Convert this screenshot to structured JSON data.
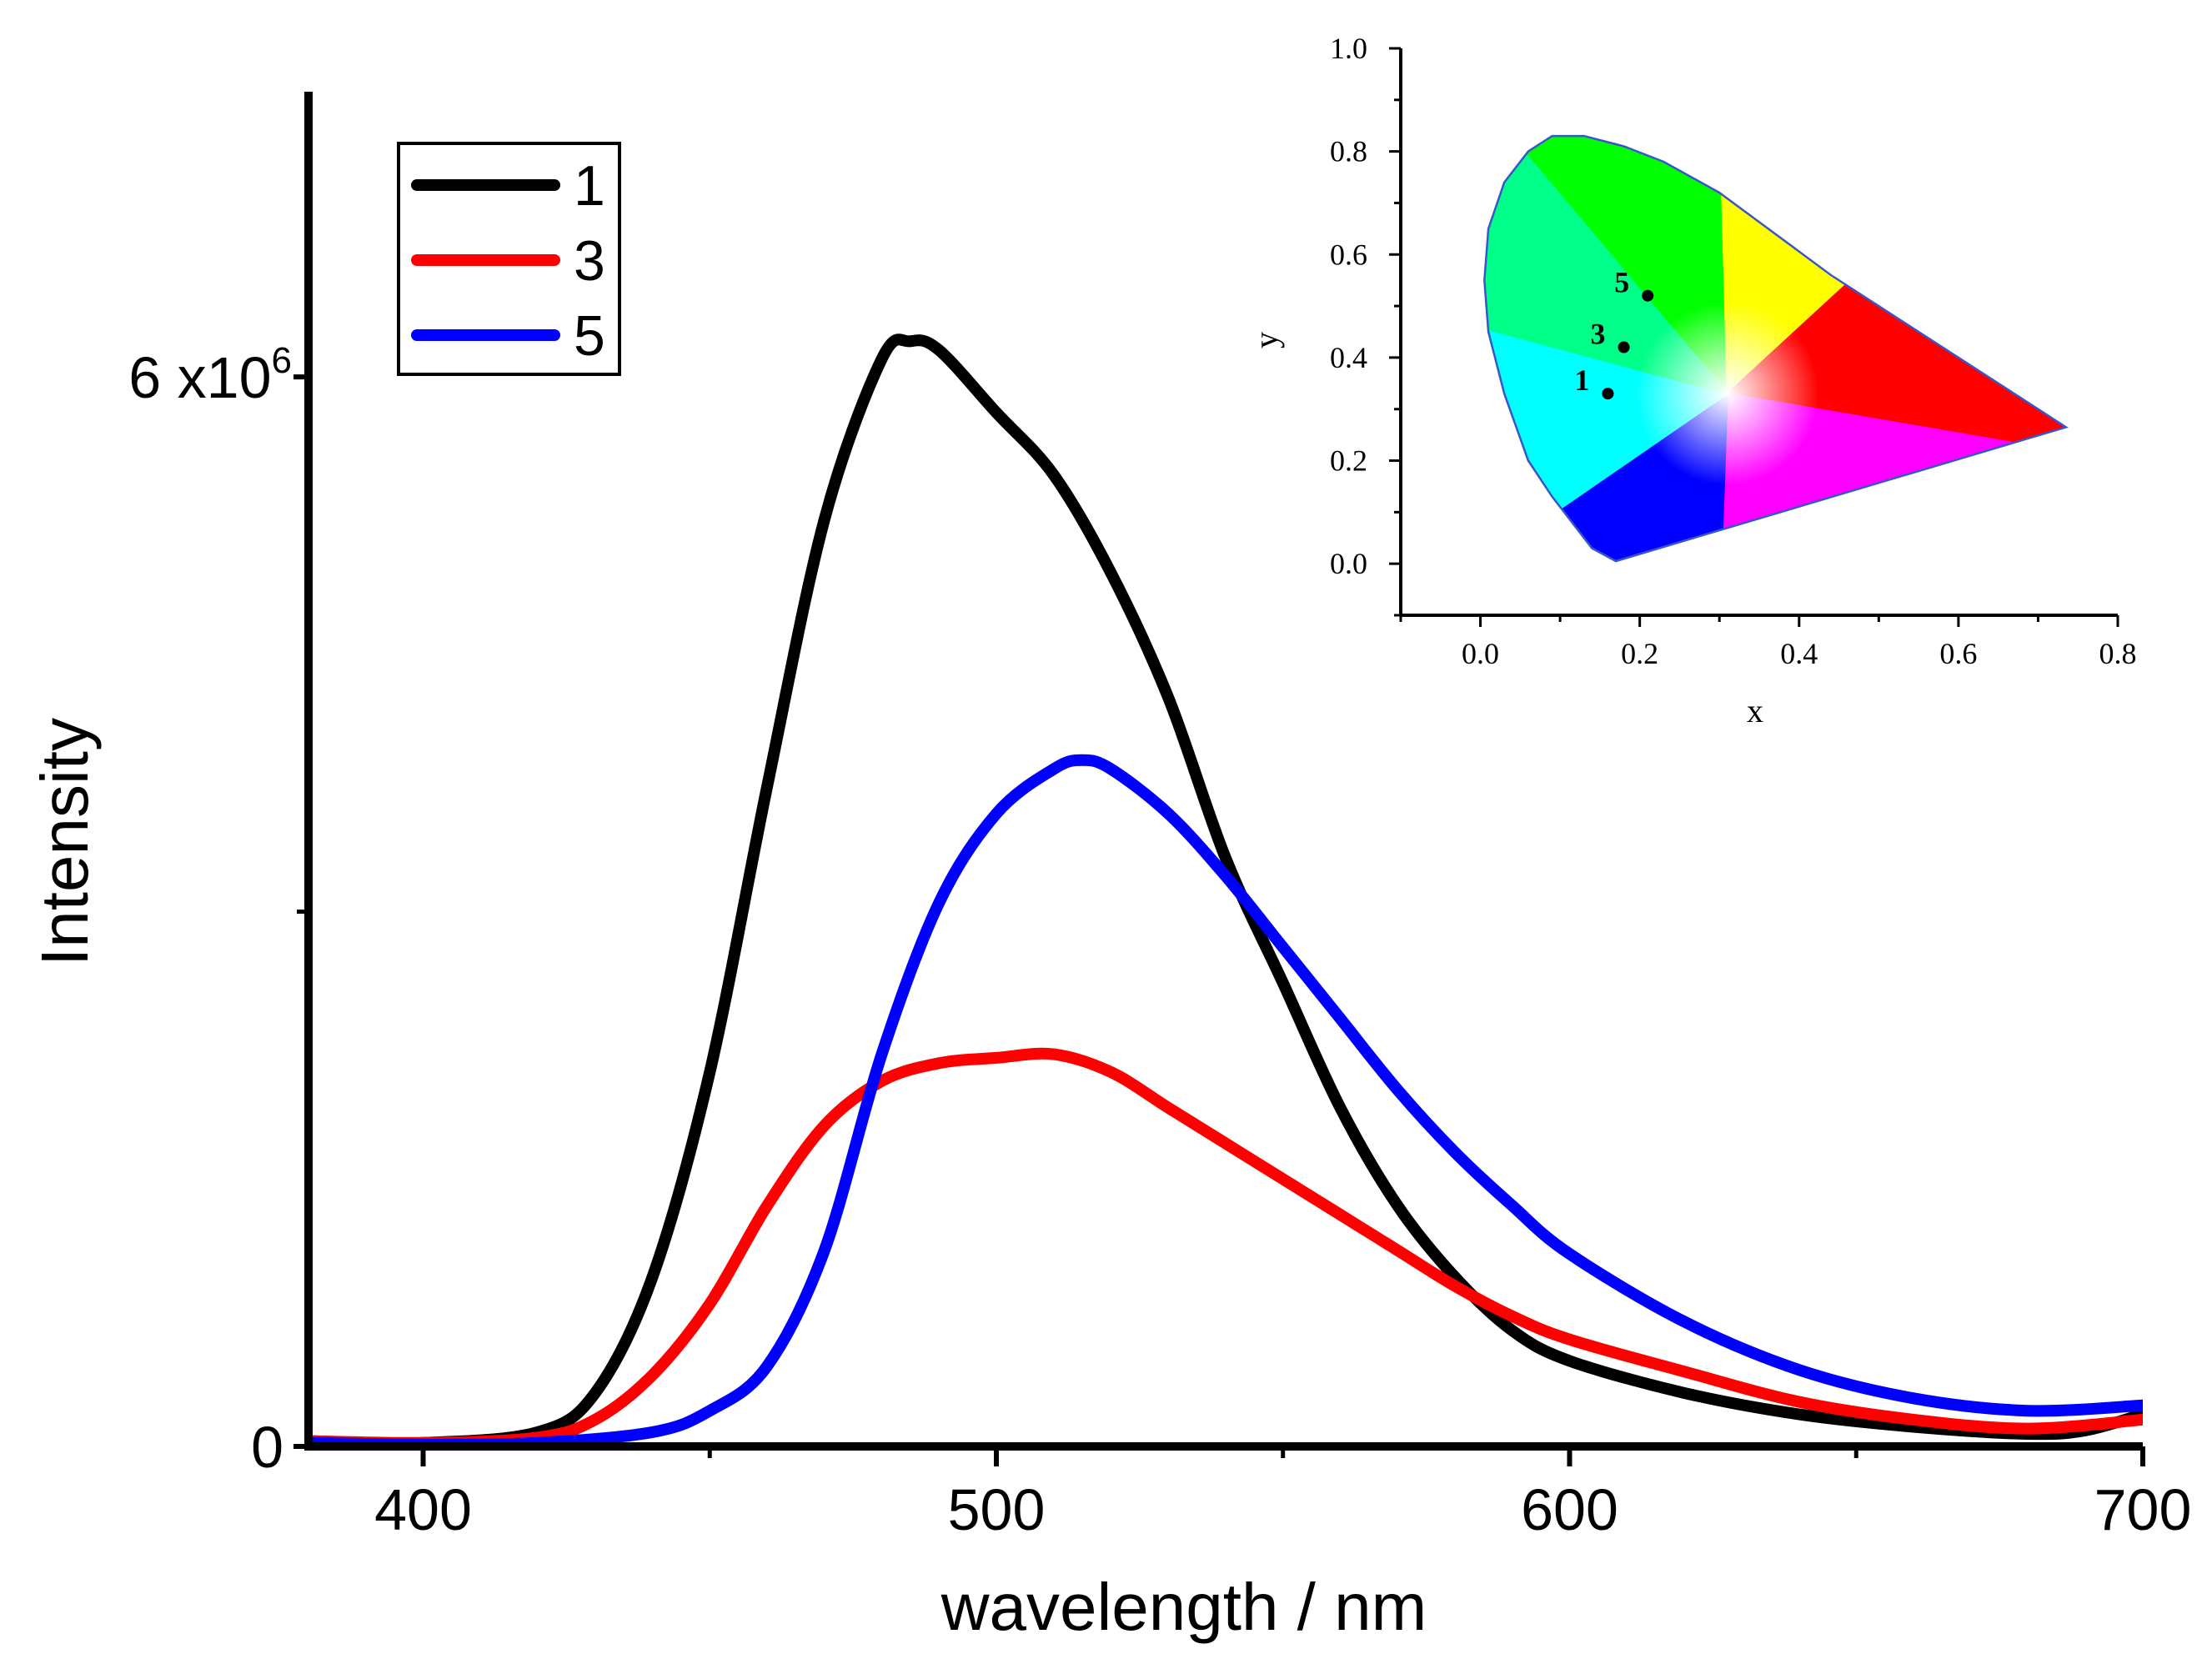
{
  "chart_data": [
    {
      "type": "line",
      "xlabel": "wavelength / nm",
      "ylabel": "Intensity",
      "xlim": [
        380,
        700
      ],
      "ylim": [
        0,
        7600000
      ],
      "x_ticks": [
        {
          "value": 400,
          "label": "400"
        },
        {
          "value": 500,
          "label": "500"
        },
        {
          "value": 600,
          "label": "600"
        },
        {
          "value": 700,
          "label": "700"
        }
      ],
      "y_ticks": [
        {
          "value": 0,
          "label": "0"
        },
        {
          "value": 6000000,
          "label": "6 x10",
          "exponent": "6"
        }
      ],
      "y_minor_ticks": [
        3000000
      ],
      "legend_position": "top-left",
      "series": [
        {
          "name": "1",
          "color": "#000000",
          "x": [
            380,
            400,
            420,
            430,
            440,
            450,
            460,
            470,
            480,
            485,
            490,
            500,
            510,
            520,
            530,
            540,
            550,
            560,
            570,
            580,
            590,
            600,
            620,
            640,
            660,
            680,
            690,
            700
          ],
          "y": [
            30000,
            20000,
            80000,
            300000,
            950000,
            2100000,
            3700000,
            5200000,
            6100000,
            6200000,
            6150000,
            5800000,
            5450000,
            4900000,
            4200000,
            3300000,
            2600000,
            1900000,
            1350000,
            950000,
            650000,
            480000,
            300000,
            180000,
            110000,
            70000,
            90000,
            180000
          ]
        },
        {
          "name": "3",
          "color": "#ff0000",
          "x": [
            380,
            400,
            420,
            430,
            440,
            450,
            460,
            470,
            480,
            490,
            500,
            510,
            520,
            530,
            540,
            550,
            560,
            570,
            580,
            590,
            600,
            620,
            640,
            660,
            680,
            700
          ],
          "y": [
            30000,
            20000,
            50000,
            150000,
            400000,
            800000,
            1350000,
            1800000,
            2050000,
            2150000,
            2180000,
            2200000,
            2100000,
            1900000,
            1700000,
            1500000,
            1300000,
            1100000,
            900000,
            730000,
            600000,
            420000,
            250000,
            150000,
            100000,
            150000
          ]
        },
        {
          "name": "5",
          "color": "#0000ff",
          "x": [
            380,
            400,
            420,
            440,
            450,
            460,
            470,
            480,
            490,
            500,
            510,
            515,
            520,
            530,
            540,
            550,
            560,
            570,
            580,
            590,
            600,
            620,
            640,
            660,
            680,
            700
          ],
          "y": [
            20000,
            10000,
            20000,
            80000,
            200000,
            450000,
            1100000,
            2200000,
            3050000,
            3550000,
            3800000,
            3850000,
            3800000,
            3550000,
            3200000,
            2800000,
            2400000,
            2000000,
            1650000,
            1350000,
            1080000,
            700000,
            430000,
            270000,
            200000,
            230000
          ]
        }
      ]
    },
    {
      "type": "scatter",
      "xlabel": "x",
      "ylabel": "y",
      "xlim": [
        -0.1,
        0.8
      ],
      "ylim": [
        -0.1,
        1.0
      ],
      "x_ticks": [
        "0.0",
        "0.2",
        "0.4",
        "0.6",
        "0.8"
      ],
      "y_ticks": [
        "0.0",
        "0.2",
        "0.4",
        "0.6",
        "0.8",
        "1.0"
      ],
      "points": [
        {
          "label": "1",
          "x": 0.16,
          "y": 0.33
        },
        {
          "label": "3",
          "x": 0.18,
          "y": 0.42
        },
        {
          "label": "5",
          "x": 0.21,
          "y": 0.52
        }
      ],
      "gamut_colors": {
        "green": "#00ff00",
        "red": "#ff0000",
        "blue": "#0000ff",
        "yellow": "#ffff00",
        "cyan": "#00ffff",
        "magenta": "#ff00ff",
        "outline": "#3a55c8"
      }
    }
  ]
}
